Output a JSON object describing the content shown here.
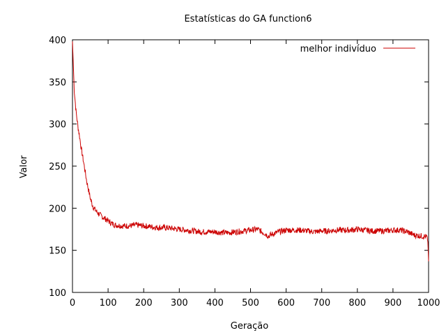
{
  "chart_data": {
    "type": "line",
    "title": "Estatísticas do GA function6",
    "xlabel": "Geração",
    "ylabel": "Valor",
    "xlim": [
      0,
      1000
    ],
    "ylim": [
      100,
      400
    ],
    "xticks": [
      0,
      100,
      200,
      300,
      400,
      500,
      600,
      700,
      800,
      900,
      1000
    ],
    "yticks": [
      100,
      150,
      200,
      250,
      300,
      350,
      400
    ],
    "grid": false,
    "legend_position": "top-right",
    "series": [
      {
        "name": "melhor indivíduo",
        "color": "#cc0000",
        "points": [
          [
            0,
            398
          ],
          [
            2,
            375
          ],
          [
            5,
            340
          ],
          [
            10,
            315
          ],
          [
            15,
            298
          ],
          [
            20,
            285
          ],
          [
            25,
            270
          ],
          [
            30,
            258
          ],
          [
            35,
            245
          ],
          [
            40,
            232
          ],
          [
            45,
            222
          ],
          [
            50,
            212
          ],
          [
            55,
            205
          ],
          [
            60,
            200
          ],
          [
            70,
            195
          ],
          [
            80,
            191
          ],
          [
            90,
            188
          ],
          [
            100,
            185
          ],
          [
            110,
            182
          ],
          [
            120,
            180
          ],
          [
            140,
            179
          ],
          [
            160,
            179
          ],
          [
            180,
            180
          ],
          [
            200,
            179
          ],
          [
            220,
            178
          ],
          [
            240,
            177
          ],
          [
            260,
            177
          ],
          [
            280,
            176
          ],
          [
            300,
            175
          ],
          [
            320,
            174
          ],
          [
            340,
            173
          ],
          [
            360,
            172
          ],
          [
            380,
            172
          ],
          [
            400,
            172
          ],
          [
            420,
            171
          ],
          [
            440,
            171
          ],
          [
            460,
            172
          ],
          [
            480,
            173
          ],
          [
            500,
            174
          ],
          [
            520,
            175
          ],
          [
            540,
            170
          ],
          [
            550,
            167
          ],
          [
            560,
            169
          ],
          [
            580,
            172
          ],
          [
            600,
            174
          ],
          [
            620,
            174
          ],
          [
            640,
            174
          ],
          [
            660,
            173
          ],
          [
            680,
            172
          ],
          [
            700,
            173
          ],
          [
            720,
            173
          ],
          [
            740,
            174
          ],
          [
            760,
            174
          ],
          [
            780,
            174
          ],
          [
            800,
            175
          ],
          [
            820,
            174
          ],
          [
            840,
            173
          ],
          [
            860,
            173
          ],
          [
            880,
            173
          ],
          [
            900,
            174
          ],
          [
            920,
            174
          ],
          [
            940,
            172
          ],
          [
            960,
            168
          ],
          [
            980,
            167
          ],
          [
            995,
            166
          ],
          [
            998,
            160
          ],
          [
            1000,
            137
          ]
        ]
      }
    ]
  }
}
